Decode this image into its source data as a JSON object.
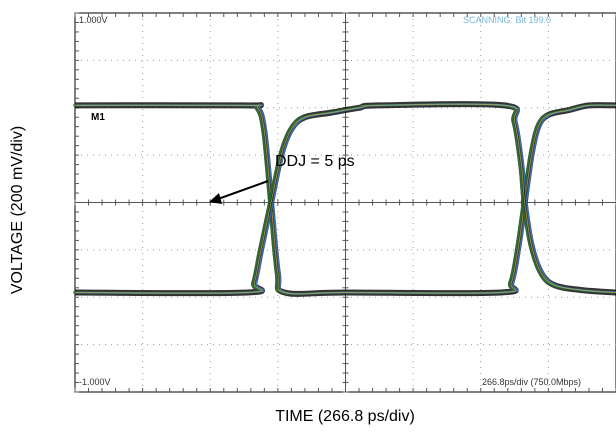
{
  "chart_data": {
    "type": "line",
    "title": "",
    "xlabel": "TIME (266.8 ps/div)",
    "ylabel": "VOLTAGE (200 mV/div)",
    "screen": {
      "top_left": "1.000V",
      "bottom_left": "-1.000V",
      "status": "SCANNING: Bit 199.0",
      "marker": "M1",
      "timebase": "266.8ps/div (750.0Mbps)"
    },
    "annotation": {
      "text": "DDJ = 5 ps"
    },
    "grid": true,
    "xdiv": 8,
    "ydiv": 8,
    "levels": {
      "high": 2.05,
      "low": -1.9
    },
    "crossings": [
      -1.1,
      2.65
    ],
    "series": [
      {
        "values": [
          [
            -4.0,
            2.05
          ],
          [
            -1.5,
            2.05
          ],
          [
            -1.3,
            2.0
          ],
          [
            -1.2,
            1.5
          ],
          [
            -1.1,
            0.0
          ],
          [
            -1.0,
            -1.5
          ],
          [
            -0.9,
            -1.9
          ],
          [
            0.0,
            -1.9
          ],
          [
            2.3,
            -1.9
          ],
          [
            2.45,
            -1.7
          ],
          [
            2.55,
            -1.0
          ],
          [
            2.65,
            0.0
          ],
          [
            2.75,
            1.0
          ],
          [
            2.85,
            1.6
          ],
          [
            3.0,
            1.85
          ],
          [
            3.3,
            1.95
          ],
          [
            3.6,
            2.05
          ],
          [
            4.0,
            2.05
          ]
        ]
      },
      {
        "values": [
          [
            -4.0,
            -1.9
          ],
          [
            -1.45,
            -1.9
          ],
          [
            -1.35,
            -1.7
          ],
          [
            -1.25,
            -1.0
          ],
          [
            -1.1,
            0.0
          ],
          [
            -0.95,
            1.0
          ],
          [
            -0.8,
            1.55
          ],
          [
            -0.6,
            1.8
          ],
          [
            -0.2,
            1.9
          ],
          [
            0.2,
            2.0
          ],
          [
            0.5,
            2.05
          ],
          [
            2.35,
            2.05
          ],
          [
            2.5,
            1.7
          ],
          [
            2.6,
            0.8
          ],
          [
            2.65,
            0.0
          ],
          [
            2.75,
            -0.9
          ],
          [
            2.9,
            -1.5
          ],
          [
            3.1,
            -1.75
          ],
          [
            3.5,
            -1.85
          ],
          [
            4.0,
            -1.9
          ]
        ]
      }
    ]
  }
}
